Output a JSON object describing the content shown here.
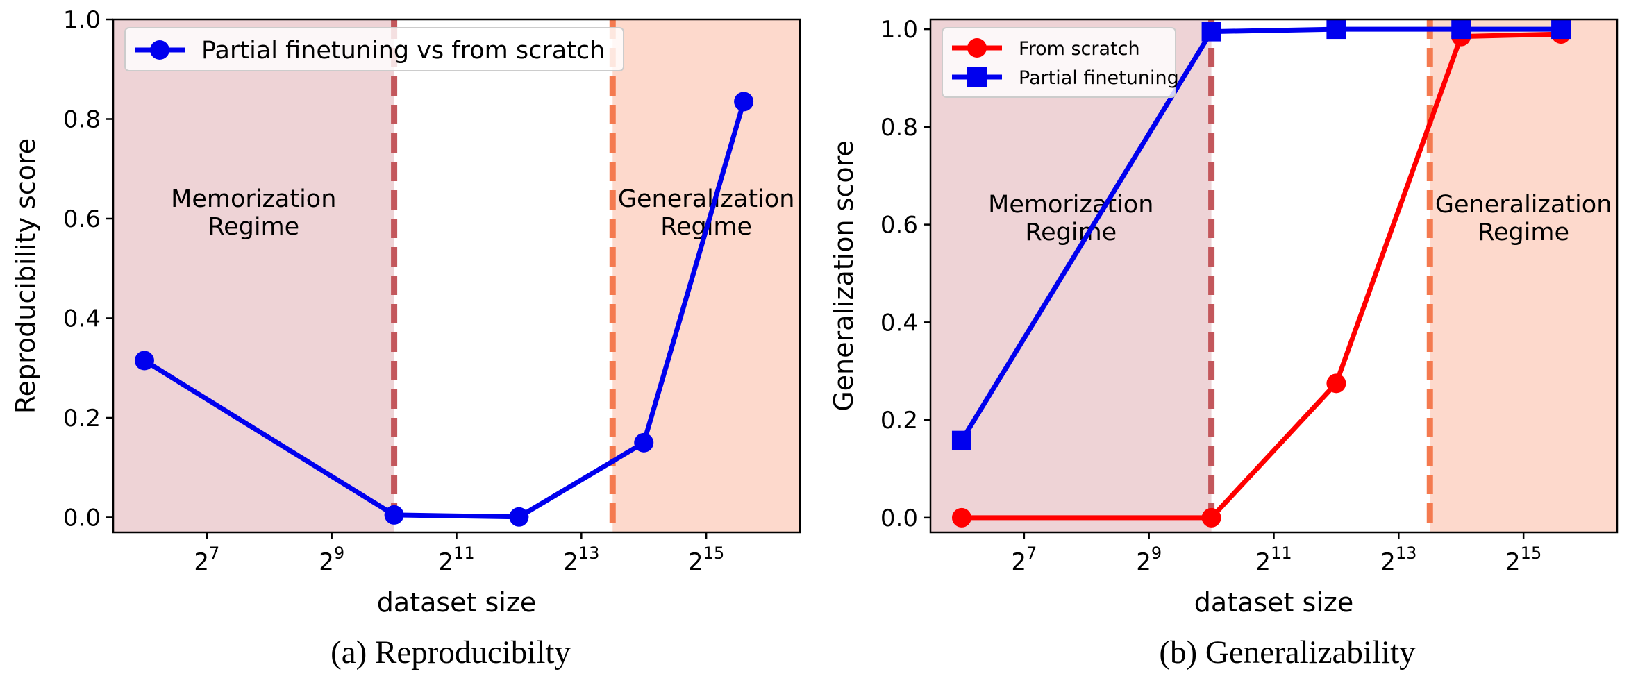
{
  "chart_data": [
    {
      "type": "line",
      "caption": "(a) Reproducibilty",
      "xlabel": "dataset size",
      "ylabel": "Reproducibility score",
      "x_scale": "log2",
      "xlim_log2": [
        5.5,
        16.5
      ],
      "ylim": [
        -0.03,
        1.0
      ],
      "yticks": [
        "0.0",
        "0.2",
        "0.4",
        "0.6",
        "0.8",
        "1.0"
      ],
      "ytick_values": [
        0.0,
        0.2,
        0.4,
        0.6,
        0.8,
        1.0
      ],
      "xtick_exponents": [
        7,
        9,
        11,
        13,
        15
      ],
      "xtick_base": "2",
      "regions": [
        {
          "name": "memorization",
          "label_line1": "Memorization",
          "label_line2": "Regime",
          "x_from_log2": 5.5,
          "x_to_log2": 10,
          "color": "#eed3d6"
        },
        {
          "name": "generalization",
          "label_line1": "Generalization",
          "label_line2": "Regime",
          "x_from_log2": 13.5,
          "x_to_log2": 16.5,
          "color": "#fdd9cc"
        }
      ],
      "vlines": [
        {
          "x_log2": 10,
          "color": "#c3575c"
        },
        {
          "x_log2": 13.5,
          "color": "#f47a4f"
        }
      ],
      "legend_position": "top-left",
      "series": [
        {
          "name": "Partial finetuning vs from scratch",
          "color": "#0000ee",
          "marker": "circle",
          "x_log2": [
            6,
            10,
            12,
            14,
            15.6
          ],
          "values": [
            0.315,
            0.005,
            0.001,
            0.15,
            0.835
          ]
        }
      ]
    },
    {
      "type": "line",
      "caption": "(b) Generalizability",
      "xlabel": "dataset size",
      "ylabel": "Generalization score",
      "x_scale": "log2",
      "xlim_log2": [
        5.5,
        16.5
      ],
      "ylim": [
        -0.03,
        1.02
      ],
      "yticks": [
        "0.0",
        "0.2",
        "0.4",
        "0.6",
        "0.8",
        "1.0"
      ],
      "ytick_values": [
        0.0,
        0.2,
        0.4,
        0.6,
        0.8,
        1.0
      ],
      "xtick_exponents": [
        7,
        9,
        11,
        13,
        15
      ],
      "xtick_base": "2",
      "regions": [
        {
          "name": "memorization",
          "label_line1": "Memorization",
          "label_line2": "Regime",
          "x_from_log2": 5.5,
          "x_to_log2": 10,
          "color": "#eed3d6"
        },
        {
          "name": "generalization",
          "label_line1": "Generalization",
          "label_line2": "Regime",
          "x_from_log2": 13.5,
          "x_to_log2": 16.5,
          "color": "#fdd9cc"
        }
      ],
      "vlines": [
        {
          "x_log2": 10,
          "color": "#c3575c"
        },
        {
          "x_log2": 13.5,
          "color": "#f47a4f"
        }
      ],
      "legend_position": "top-left",
      "series": [
        {
          "name": "From scratch",
          "color": "#ff0000",
          "marker": "circle",
          "x_log2": [
            6,
            10,
            12,
            14,
            15.6
          ],
          "values": [
            0.0,
            0.0,
            0.275,
            0.985,
            0.99
          ]
        },
        {
          "name": "Partial finetuning",
          "color": "#0000ee",
          "marker": "square",
          "x_log2": [
            6,
            10,
            12,
            14,
            15.6
          ],
          "values": [
            0.158,
            0.995,
            1.0,
            1.0,
            1.0
          ]
        }
      ]
    }
  ]
}
